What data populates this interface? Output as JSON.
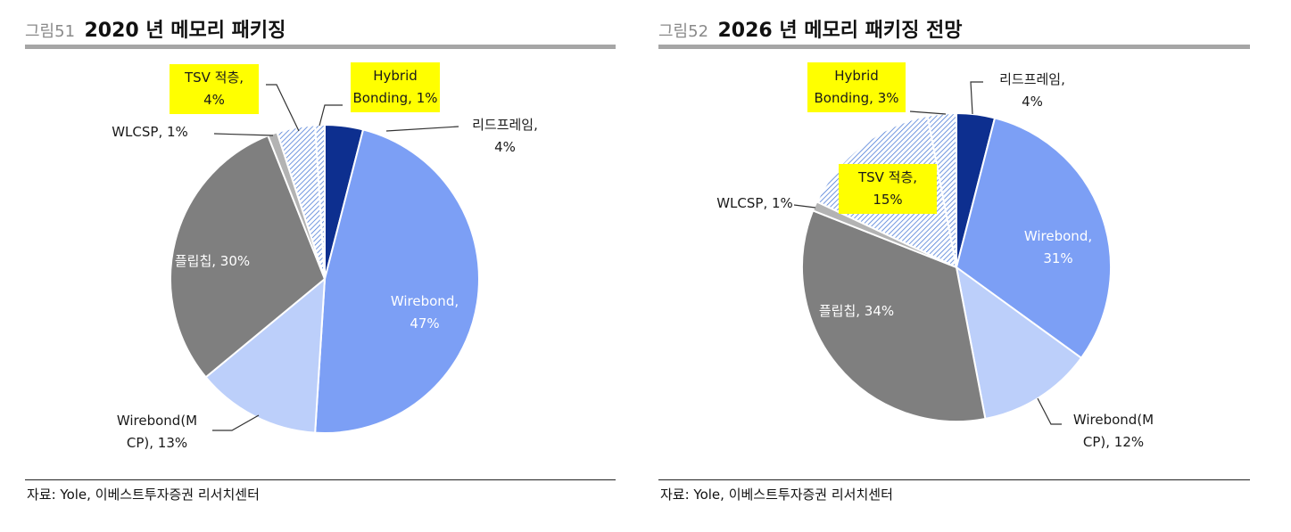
{
  "colors": {
    "leadframe": "#0d2f8f",
    "wirebond": "#7c9ff5",
    "wirebond_mcp": "#bccffa",
    "flipchip": "#7f7f7f",
    "wlcsp": "#b3b3b3",
    "tsv_hatch": "#4f7ed8",
    "hybrid_hatch": "#4f7ed8",
    "highlight": "#ffff00",
    "title_rule": "#a6a6a6"
  },
  "panels": [
    {
      "fig_no": "그림51",
      "title": "2020 년 메모리 패키징",
      "source": "자료: Yole, 이베스트투자증권 리서치센터"
    },
    {
      "fig_no": "그림52",
      "title": "2026 년 메모리 패키징 전망",
      "source": "자료: Yole, 이베스트투자증권 리서치센터"
    }
  ],
  "chart_data": [
    {
      "type": "pie",
      "title": "2020 년 메모리 패키징",
      "slices": [
        {
          "key": "leadframe",
          "label": [
            "리드프레임,",
            "4%"
          ],
          "value": 4,
          "fill": "leadframe"
        },
        {
          "key": "wirebond",
          "label": [
            "Wirebond,",
            "47%"
          ],
          "value": 47,
          "fill": "wirebond"
        },
        {
          "key": "wirebond_mcp",
          "label": [
            "Wirebond(M",
            "CP), 13%"
          ],
          "value": 13,
          "fill": "wirebond_mcp"
        },
        {
          "key": "flipchip",
          "label": [
            "플립칩, 30%"
          ],
          "value": 30,
          "fill": "flipchip"
        },
        {
          "key": "wlcsp",
          "label": [
            "WLCSP, 1%"
          ],
          "value": 1,
          "fill": "wlcsp"
        },
        {
          "key": "tsv",
          "label": [
            "TSV 적층,",
            "4%"
          ],
          "value": 4,
          "fill": "hatch",
          "highlight": true
        },
        {
          "key": "hybrid",
          "label": [
            "Hybrid",
            "Bonding, 1%"
          ],
          "value": 1,
          "fill": "hatch",
          "highlight": true
        }
      ]
    },
    {
      "type": "pie",
      "title": "2026 년 메모리 패키징 전망",
      "slices": [
        {
          "key": "leadframe",
          "label": [
            "리드프레임,",
            "4%"
          ],
          "value": 4,
          "fill": "leadframe"
        },
        {
          "key": "wirebond",
          "label": [
            "Wirebond,",
            "31%"
          ],
          "value": 31,
          "fill": "wirebond"
        },
        {
          "key": "wirebond_mcp",
          "label": [
            "Wirebond(M",
            "CP), 12%"
          ],
          "value": 12,
          "fill": "wirebond_mcp"
        },
        {
          "key": "flipchip",
          "label": [
            "플립칩, 34%"
          ],
          "value": 34,
          "fill": "flipchip"
        },
        {
          "key": "wlcsp",
          "label": [
            "WLCSP, 1%"
          ],
          "value": 1,
          "fill": "wlcsp"
        },
        {
          "key": "tsv",
          "label": [
            "TSV 적층,",
            "15%"
          ],
          "value": 15,
          "fill": "hatch",
          "highlight": true
        },
        {
          "key": "hybrid",
          "label": [
            "Hybrid",
            "Bonding, 3%"
          ],
          "value": 3,
          "fill": "hatch",
          "highlight": true
        }
      ]
    }
  ]
}
